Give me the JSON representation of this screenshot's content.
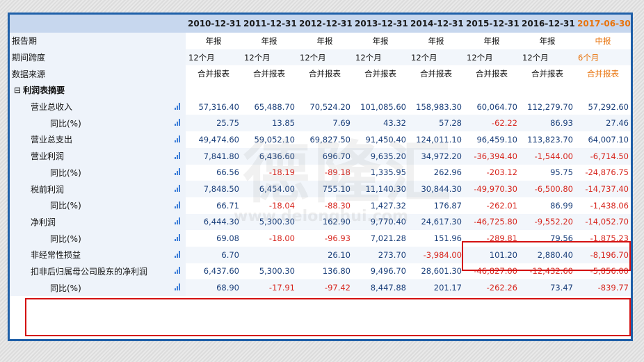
{
  "columns": [
    "2010-12-31",
    "2011-12-31",
    "2012-12-31",
    "2013-12-31",
    "2014-12-31",
    "2015-12-31",
    "2016-12-31",
    "2017-06-30"
  ],
  "meta_rows": [
    {
      "label": "报告期",
      "values": [
        "年报",
        "年报",
        "年报",
        "年报",
        "年报",
        "年报",
        "年报",
        "中报"
      ],
      "align": "center"
    },
    {
      "label": "期间跨度",
      "values": [
        "12个月",
        "12个月",
        "12个月",
        "12个月",
        "12个月",
        "12个月",
        "12个月",
        "6个月"
      ],
      "align": "left"
    },
    {
      "label": "数据来源",
      "values": [
        "合并报表",
        "合并报表",
        "合并报表",
        "合并报表",
        "合并报表",
        "合并报表",
        "合并报表",
        "合并报表"
      ],
      "align": "center"
    }
  ],
  "section": {
    "toggle": "⊟",
    "label": "利润表摘要"
  },
  "rows": [
    {
      "label": "营业总收入",
      "level": 1,
      "values": [
        "57,316.40",
        "65,488.70",
        "70,524.20",
        "101,085.60",
        "158,983.30",
        "60,064.70",
        "112,279.70",
        "57,292.60"
      ]
    },
    {
      "label": "同比(%)",
      "level": 2,
      "values": [
        "25.75",
        "13.85",
        "7.69",
        "43.32",
        "57.28",
        "-62.22",
        "86.93",
        "27.46"
      ]
    },
    {
      "label": "营业总支出",
      "level": 1,
      "values": [
        "49,474.60",
        "59,052.10",
        "69,827.50",
        "91,450.40",
        "124,011.10",
        "96,459.10",
        "113,823.70",
        "64,007.10"
      ]
    },
    {
      "label": "营业利润",
      "level": 1,
      "values": [
        "7,841.80",
        "6,436.60",
        "696.70",
        "9,635.20",
        "34,972.20",
        "-36,394.40",
        "-1,544.00",
        "-6,714.50"
      ]
    },
    {
      "label": "同比(%)",
      "level": 2,
      "values": [
        "66.56",
        "-18.19",
        "-89.18",
        "1,335.95",
        "262.96",
        "-203.12",
        "95.75",
        "-24,876.75"
      ]
    },
    {
      "label": "税前利润",
      "level": 1,
      "values": [
        "7,848.50",
        "6,454.00",
        "755.10",
        "11,140.30",
        "30,844.30",
        "-49,970.30",
        "-6,500.80",
        "-14,737.40"
      ]
    },
    {
      "label": "同比(%)",
      "level": 2,
      "values": [
        "66.71",
        "-18.04",
        "-88.30",
        "1,427.32",
        "176.87",
        "-262.01",
        "86.99",
        "-1,438.06"
      ]
    },
    {
      "label": "净利润",
      "level": 1,
      "values": [
        "6,444.30",
        "5,300.30",
        "162.90",
        "9,770.40",
        "24,617.30",
        "-46,725.80",
        "-9,552.20",
        "-14,052.70"
      ]
    },
    {
      "label": "同比(%)",
      "level": 2,
      "values": [
        "69.08",
        "-18.00",
        "-96.93",
        "7,021.28",
        "151.96",
        "-289.81",
        "79.56",
        "-1,875.23"
      ]
    },
    {
      "label": "非经常性损益",
      "level": 1,
      "values": [
        "6.70",
        "",
        "26.10",
        "273.70",
        "-3,984.00",
        "101.20",
        "2,880.40",
        "-8,196.70"
      ]
    },
    {
      "label": "扣非后归属母公司股东的净利润",
      "level": 1,
      "values": [
        "6,437.60",
        "5,300.30",
        "136.80",
        "9,496.70",
        "28,601.30",
        "-46,827.00",
        "-12,432.60",
        "-5,856.00"
      ]
    },
    {
      "label": "同比(%)",
      "level": 2,
      "values": [
        "68.90",
        "-17.91",
        "-97.42",
        "8,447.88",
        "201.17",
        "-262.26",
        "73.47",
        "-839.77"
      ]
    }
  ],
  "icons": {
    "row_chart": "bar-chart-icon",
    "section_toggle": "collapse-icon"
  },
  "colors": {
    "header_bg": "#c7d7ee",
    "label_bg": "#eef3fa",
    "value": "#1a3f7a",
    "negative": "#d7261e",
    "latest_period": "#e8730c",
    "frame": "#1e5fa8",
    "highlight_box": "#d41111"
  },
  "watermark": {
    "text": "德隆汇",
    "url": "www.delonghui.com"
  }
}
